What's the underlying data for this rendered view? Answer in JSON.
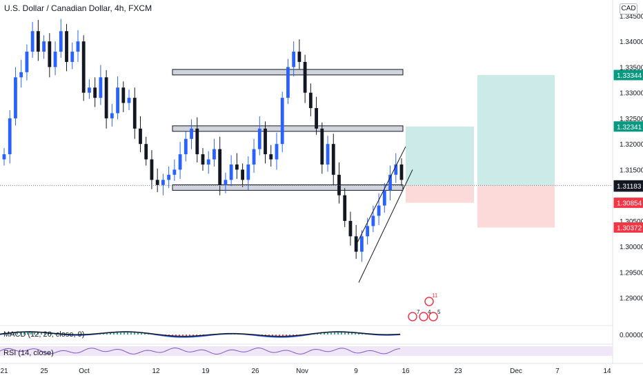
{
  "header": {
    "symbol_title": "U.S. Dollar / Canadian Dollar, 4h, FXCM",
    "currency": "CAD"
  },
  "colors": {
    "up": "#2962ff",
    "down": "#131722",
    "tp_zone": "#bfe6e2",
    "sl_zone": "#fbd1d1",
    "price_tag_dark": "#131722",
    "price_tag_red": "#f23645",
    "price_tag_green": "#089981",
    "macd_line": "#2962ff",
    "signal_line": "#131722",
    "rsi_line": "#7e57c2",
    "rsi_band": "#efe6f7"
  },
  "chart_data": {
    "type": "candlestick",
    "timeframe": "4h",
    "y_axis_ticks": [
      "1.34500",
      "1.34000",
      "1.33500",
      "1.33000",
      "1.32500",
      "1.32000",
      "1.31500",
      "1.30500",
      "1.30000",
      "1.29500",
      "1.29000"
    ],
    "y_range": [
      1.285,
      1.347
    ],
    "x_axis_ticks": [
      "21",
      "25",
      "Oct",
      "12",
      "19",
      "26",
      "Nov",
      "9",
      "16",
      "23",
      "Dec",
      "7",
      "14"
    ],
    "price_tags": [
      {
        "label": "1.33344",
        "value": 1.33344,
        "style": "green"
      },
      {
        "label": "1.32341",
        "value": 1.32341,
        "style": "green"
      },
      {
        "label": "1.31193",
        "value": 1.31193,
        "style": "outline"
      },
      {
        "label": "1.31193",
        "value": 1.3117,
        "style": "outline"
      },
      {
        "label": "1.31183",
        "value": 1.31183,
        "style": "dark"
      },
      {
        "label": "1.30854",
        "value": 1.30854,
        "style": "red"
      },
      {
        "label": "1.30372",
        "value": 1.30372,
        "style": "red"
      }
    ],
    "horizontal_zones": [
      1.334,
      1.323,
      1.3115
    ],
    "trade_setups": [
      {
        "entry": 1.31193,
        "target": 1.32341,
        "stop": 1.30854
      },
      {
        "entry": 1.31193,
        "target": 1.33344,
        "stop": 1.30372
      }
    ],
    "close_path": [
      1.318,
      1.325,
      1.333,
      1.334,
      1.338,
      1.342,
      1.338,
      1.34,
      1.335,
      1.338,
      1.342,
      1.336,
      1.338,
      1.34,
      1.33,
      1.331,
      1.329,
      1.333,
      1.325,
      1.326,
      1.331,
      1.328,
      1.329,
      1.323,
      1.32,
      1.317,
      1.313,
      1.312,
      1.313,
      1.314,
      1.315,
      1.318,
      1.321,
      1.323,
      1.318,
      1.316,
      1.317,
      1.319,
      1.312,
      1.313,
      1.316,
      1.315,
      1.313,
      1.316,
      1.319,
      1.323,
      1.318,
      1.317,
      1.32,
      1.329,
      1.335,
      1.338,
      1.336,
      1.33,
      1.327,
      1.323,
      1.316,
      1.32,
      1.314,
      1.31,
      1.305,
      1.302,
      1.299,
      1.302,
      1.304,
      1.306,
      1.308,
      1.311,
      1.314,
      1.316,
      1.313
    ],
    "channel": {
      "upper": [
        1.3,
        1.3195
      ],
      "lower": [
        1.293,
        1.315
      ]
    },
    "indicators": [
      {
        "name": "MACD (12, 26, close, 9)",
        "zero_tick": "0.00000"
      },
      {
        "name": "RSI (14, close)"
      }
    ],
    "event_markers": {
      "count_badge": "11",
      "small_counts": [
        "7",
        "4",
        "5"
      ]
    }
  }
}
